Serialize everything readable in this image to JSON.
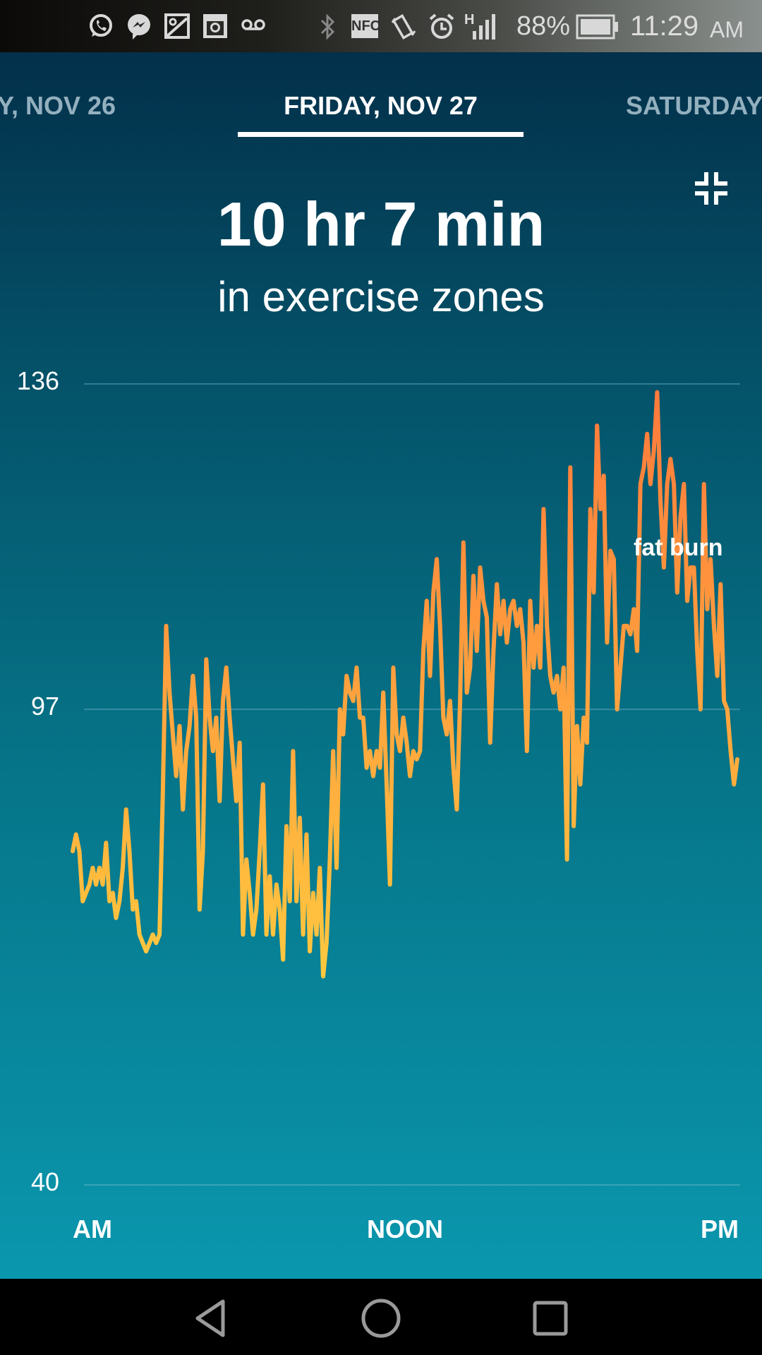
{
  "status_bar": {
    "notification_icons": [
      "whatsapp-icon",
      "messenger-icon",
      "gallery-icon",
      "instagram-icon",
      "voicemail-icon"
    ],
    "system_icons": [
      "bluetooth-icon",
      "nfc-icon",
      "vibrate-icon",
      "alarm-icon",
      "signal-icon"
    ],
    "nfc_label": "NFC",
    "network_type": "H",
    "battery": "88%",
    "time": "11:29",
    "ampm": "AM"
  },
  "date_tabs": [
    {
      "label": "Y, NOV 26",
      "active": false
    },
    {
      "label": "FRIDAY, NOV 27",
      "active": true
    },
    {
      "label": "SATURDAY",
      "active": false
    }
  ],
  "summary": {
    "duration": "10 hr 7 min",
    "caption": "in exercise zones",
    "collapse_icon": "collapse-icon"
  },
  "colors": {
    "line_low": "#ffc93f",
    "line_high": "#ff7a3c",
    "background_top": "#03304a",
    "background_bottom": "#0a97ae"
  },
  "chart_data": {
    "type": "line",
    "y_ticks": [
      "136",
      "97",
      "40"
    ],
    "ylim": [
      40,
      136
    ],
    "x_labels": [
      "AM",
      "NOON",
      "PM"
    ],
    "grid": true,
    "annotation": "fat burn",
    "values": [
      80,
      82,
      80,
      74,
      75,
      76,
      78,
      76,
      78,
      76,
      81,
      74,
      75,
      72,
      74,
      78,
      85,
      80,
      73,
      74,
      70,
      69,
      68,
      69,
      70,
      69,
      70,
      87,
      107,
      99,
      94,
      89,
      95,
      85,
      92,
      95,
      101,
      96,
      73,
      80,
      103,
      96,
      92,
      96,
      86,
      98,
      102,
      96,
      91,
      86,
      93,
      70,
      79,
      75,
      70,
      73,
      80,
      88,
      70,
      77,
      70,
      76,
      73,
      67,
      83,
      74,
      92,
      74,
      84,
      70,
      82,
      68,
      75,
      70,
      78,
      65,
      69,
      79,
      92,
      78,
      97,
      94,
      101,
      99,
      98,
      102,
      96,
      96,
      90,
      92,
      89,
      92,
      90,
      99,
      88,
      76,
      102,
      94,
      92,
      96,
      93,
      89,
      92,
      91,
      92,
      104,
      110,
      101,
      111,
      115,
      107,
      96,
      94,
      98,
      90,
      85,
      98,
      117,
      99,
      102,
      113,
      104,
      114,
      110,
      108,
      93,
      104,
      112,
      106,
      110,
      105,
      109,
      110,
      107,
      109,
      105,
      92,
      110,
      102,
      107,
      102,
      121,
      107,
      101,
      99,
      101,
      97,
      102,
      79,
      126,
      83,
      95,
      88,
      96,
      93,
      121,
      111,
      131,
      121,
      125,
      105,
      116,
      115,
      97,
      102,
      107,
      107,
      106,
      109,
      104,
      124,
      126,
      130,
      124,
      128,
      135,
      122,
      114,
      124,
      127,
      124,
      111,
      120,
      124,
      110,
      114,
      114,
      104,
      97,
      124,
      109,
      115,
      107,
      101,
      112,
      98,
      97,
      92,
      88,
      91
    ]
  }
}
